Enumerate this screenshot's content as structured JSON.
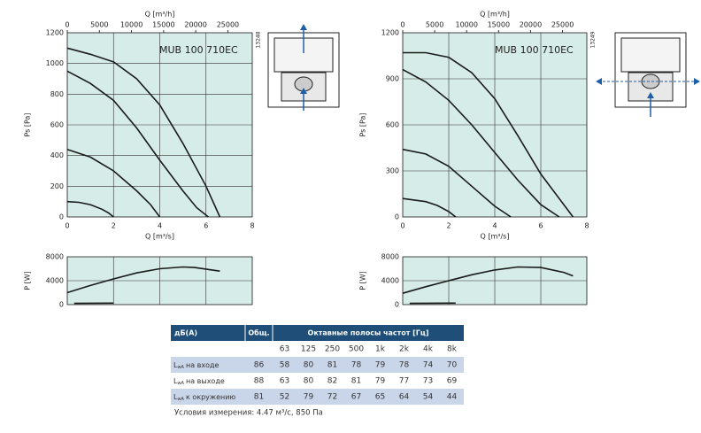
{
  "chart_data": [
    {
      "type": "line",
      "annotation": "MUB 100 710EC",
      "code": "13248",
      "xlabel": "Q [m³/s]",
      "ylabel": "Ps [Pa]",
      "x2label": "Q [m³/h]",
      "xlim": [
        0,
        8
      ],
      "xticks": [
        0,
        2,
        4,
        6,
        8
      ],
      "ylim": [
        0,
        1200
      ],
      "yticks": [
        0,
        200,
        400,
        600,
        800,
        1000,
        1200
      ],
      "x2lim": [
        0,
        28800
      ],
      "x2ticks": [
        0,
        5000,
        10000,
        15000,
        20000,
        25000
      ],
      "grid": true,
      "xtick_labels": true,
      "series": [
        {
          "color": "#1a1a1a",
          "x": [
            0,
            1,
            2,
            3,
            4,
            5,
            6,
            6.6
          ],
          "values": [
            1100,
            1060,
            1010,
            900,
            730,
            480,
            200,
            0
          ]
        },
        {
          "color": "#1a1a1a",
          "x": [
            0,
            1,
            2,
            3,
            4,
            5,
            5.6,
            6.1
          ],
          "values": [
            950,
            870,
            760,
            580,
            370,
            170,
            60,
            0
          ]
        },
        {
          "color": "#1a1a1a",
          "x": [
            0,
            1,
            2,
            3,
            3.6,
            4
          ],
          "values": [
            440,
            390,
            300,
            170,
            80,
            0
          ]
        },
        {
          "color": "#1a1a1a",
          "x": [
            0,
            0.5,
            1,
            1.5,
            1.8,
            2
          ],
          "values": [
            100,
            95,
            80,
            50,
            25,
            0
          ]
        }
      ]
    },
    {
      "type": "line",
      "annotation": "MUB 100 710EC",
      "code": "13249",
      "xlabel": "Q [m³/s]",
      "ylabel": "Ps [Pa]",
      "x2label": "Q [m³/h]",
      "xlim": [
        0,
        8
      ],
      "xticks": [
        0,
        2,
        4,
        6,
        8
      ],
      "ylim": [
        0,
        1200
      ],
      "yticks": [
        0,
        300,
        600,
        900,
        1200
      ],
      "x2lim": [
        0,
        28800
      ],
      "x2ticks": [
        0,
        5000,
        10000,
        15000,
        20000,
        25000
      ],
      "grid": true,
      "xtick_labels": true,
      "series": [
        {
          "color": "#1a1a1a",
          "x": [
            0,
            1,
            2,
            3,
            4,
            5,
            6,
            7,
            7.4
          ],
          "values": [
            1070,
            1070,
            1040,
            940,
            770,
            530,
            280,
            80,
            0
          ]
        },
        {
          "color": "#1a1a1a",
          "x": [
            0,
            1,
            2,
            3,
            4,
            5,
            6,
            6.8
          ],
          "values": [
            960,
            880,
            760,
            600,
            420,
            240,
            80,
            0
          ]
        },
        {
          "color": "#1a1a1a",
          "x": [
            0,
            1,
            2,
            3,
            4,
            4.7
          ],
          "values": [
            440,
            410,
            330,
            200,
            70,
            0
          ]
        },
        {
          "color": "#1a1a1a",
          "x": [
            0,
            1,
            1.5,
            2,
            2.3
          ],
          "values": [
            120,
            100,
            75,
            35,
            0
          ]
        }
      ]
    },
    {
      "type": "line",
      "ylabel": "P [W]",
      "xlim": [
        0,
        8
      ],
      "xticks": [
        0,
        2,
        4,
        6,
        8
      ],
      "ylim": [
        0,
        8000
      ],
      "yticks": [
        0,
        4000,
        8000
      ],
      "grid": true,
      "xtick_labels": false,
      "series": [
        {
          "color": "#1a1a1a",
          "x": [
            0,
            1,
            2,
            3,
            4,
            5,
            5.5,
            6.6
          ],
          "values": [
            2000,
            3200,
            4300,
            5300,
            6000,
            6300,
            6200,
            5600
          ]
        },
        {
          "color": "#1a1a1a",
          "x": [
            0.3,
            2
          ],
          "values": [
            200,
            250
          ]
        }
      ]
    },
    {
      "type": "line",
      "ylabel": "P [W]",
      "xlim": [
        0,
        8
      ],
      "xticks": [
        0,
        2,
        4,
        6,
        8
      ],
      "ylim": [
        0,
        8000
      ],
      "yticks": [
        0,
        4000,
        8000
      ],
      "grid": true,
      "xtick_labels": false,
      "series": [
        {
          "color": "#1a1a1a",
          "x": [
            0,
            1,
            2,
            3,
            4,
            5,
            6,
            7,
            7.4
          ],
          "values": [
            1900,
            3000,
            4000,
            5000,
            5800,
            6300,
            6200,
            5400,
            4800
          ]
        },
        {
          "color": "#1a1a1a",
          "x": [
            0.3,
            2.3
          ],
          "values": [
            200,
            250
          ]
        }
      ]
    }
  ],
  "table": {
    "header": [
      "дБ(A)",
      "Общ.",
      "Октавные полосы частот [Гц]"
    ],
    "bands": [
      "63",
      "125",
      "250",
      "500",
      "1k",
      "2k",
      "4k",
      "8k"
    ],
    "rows": [
      {
        "sym": "L",
        "sub": "wA",
        "label": "на входе",
        "values": [
          86,
          58,
          80,
          81,
          78,
          79,
          78,
          74,
          70
        ]
      },
      {
        "sym": "L",
        "sub": "wA",
        "label": "на выходе",
        "values": [
          88,
          63,
          80,
          82,
          81,
          79,
          77,
          73,
          69
        ]
      },
      {
        "sym": "L",
        "sub": "wA",
        "label": "к окружению",
        "values": [
          81,
          52,
          79,
          72,
          67,
          65,
          64,
          54,
          44
        ]
      }
    ],
    "note": "Условия измерения: 4.47 м³/с, 850 Па"
  }
}
